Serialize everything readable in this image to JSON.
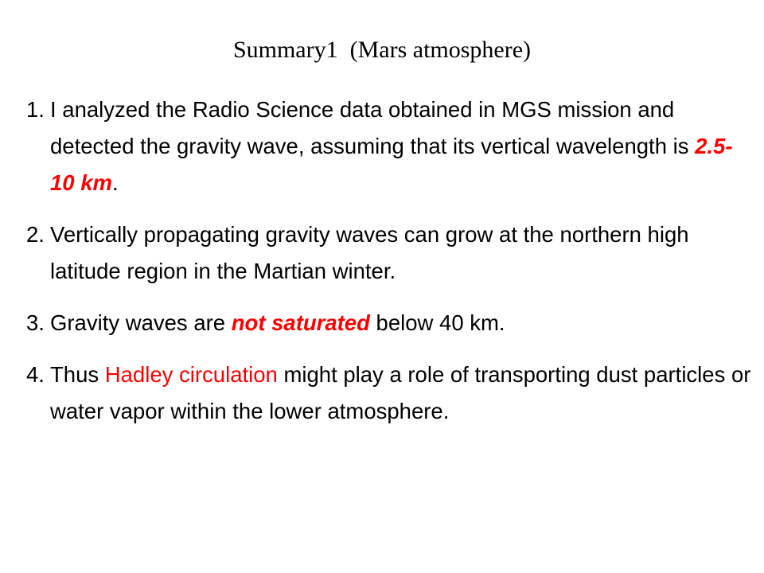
{
  "title": "Summary1  (Mars atmosphere)",
  "items": [
    {
      "number": "1.",
      "segments": [
        {
          "text": "I analyzed the Radio Science data obtained in MGS mission and detected the gravity wave, assuming that its vertical wavelength is "
        },
        {
          "text": "2.5-10 km",
          "color": "#ff0000",
          "bold": true,
          "italic": true
        },
        {
          "text": "."
        }
      ]
    },
    {
      "number": "2.",
      "segments": [
        {
          "text": "Vertically propagating gravity waves can grow at the northern high latitude region in the Martian winter."
        }
      ]
    },
    {
      "number": "3.",
      "segments": [
        {
          "text": "Gravity waves are "
        },
        {
          "text": "not saturated",
          "color": "#ff0000",
          "bold": true,
          "italic": true
        },
        {
          "text": " below 40 km."
        }
      ]
    },
    {
      "number": "4.",
      "segments": [
        {
          "text": "Thus "
        },
        {
          "text": "Hadley circulation",
          "color": "#ff0000"
        },
        {
          "text": " might play a role of transporting dust particles or water vapor within the lower atmosphere."
        }
      ]
    }
  ]
}
